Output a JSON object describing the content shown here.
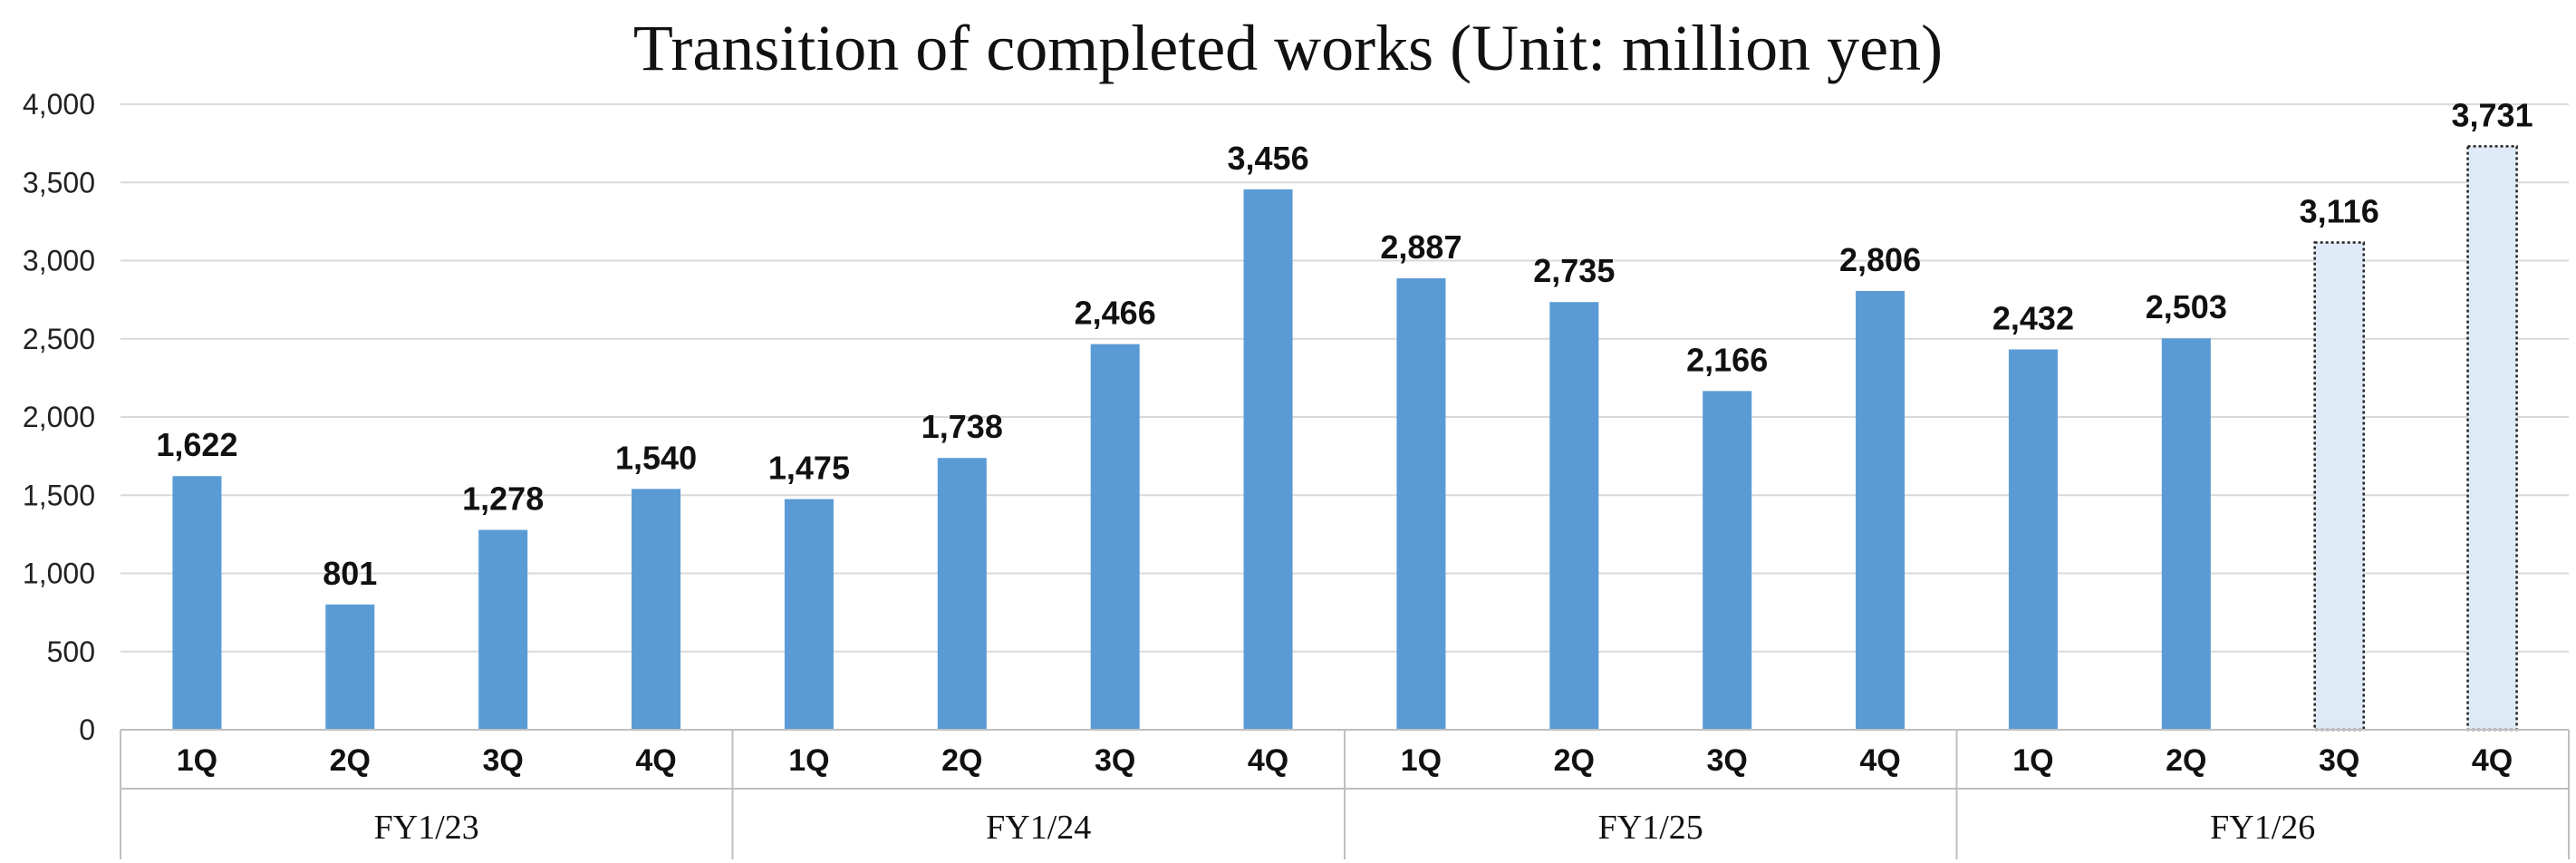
{
  "chart_data": {
    "type": "bar",
    "title": "Transition of completed works (Unit: million yen)",
    "xlabel": "",
    "ylabel": "",
    "ylim": [
      0,
      4000
    ],
    "yticks": [
      0,
      500,
      1000,
      1500,
      2000,
      2500,
      3000,
      3500,
      4000
    ],
    "ytick_labels": [
      "0",
      "500",
      "1,000",
      "1,500",
      "2,000",
      "2,500",
      "3,000",
      "3,500",
      "4,000"
    ],
    "grid": true,
    "groups": [
      {
        "label": "FY1/23",
        "categories": [
          "1Q",
          "2Q",
          "3Q",
          "4Q"
        ]
      },
      {
        "label": "FY1/24",
        "categories": [
          "1Q",
          "2Q",
          "3Q",
          "4Q"
        ]
      },
      {
        "label": "FY1/25",
        "categories": [
          "1Q",
          "2Q",
          "3Q",
          "4Q"
        ]
      },
      {
        "label": "FY1/26",
        "categories": [
          "1Q",
          "2Q",
          "3Q",
          "4Q"
        ]
      }
    ],
    "values": [
      1622,
      801,
      1278,
      1540,
      1475,
      1738,
      2466,
      3456,
      2887,
      2735,
      2166,
      2806,
      2432,
      2503,
      3116,
      3731
    ],
    "value_labels": [
      "1,622",
      "801",
      "1,278",
      "1,540",
      "1,475",
      "1,738",
      "2,466",
      "3,456",
      "2,887",
      "2,735",
      "2,166",
      "2,806",
      "2,432",
      "2,503",
      "3,116",
      "3,731"
    ],
    "bar_styles": [
      "actual",
      "actual",
      "actual",
      "actual",
      "actual",
      "actual",
      "actual",
      "actual",
      "actual",
      "actual",
      "actual",
      "actual",
      "actual",
      "actual",
      "forecast",
      "forecast"
    ],
    "colors": {
      "actual": "#5b9bd5",
      "forecast_fill": "#deebf7",
      "forecast_border": "#222222",
      "grid": "#d9d9d9",
      "axis": "#bfbfbf"
    }
  }
}
